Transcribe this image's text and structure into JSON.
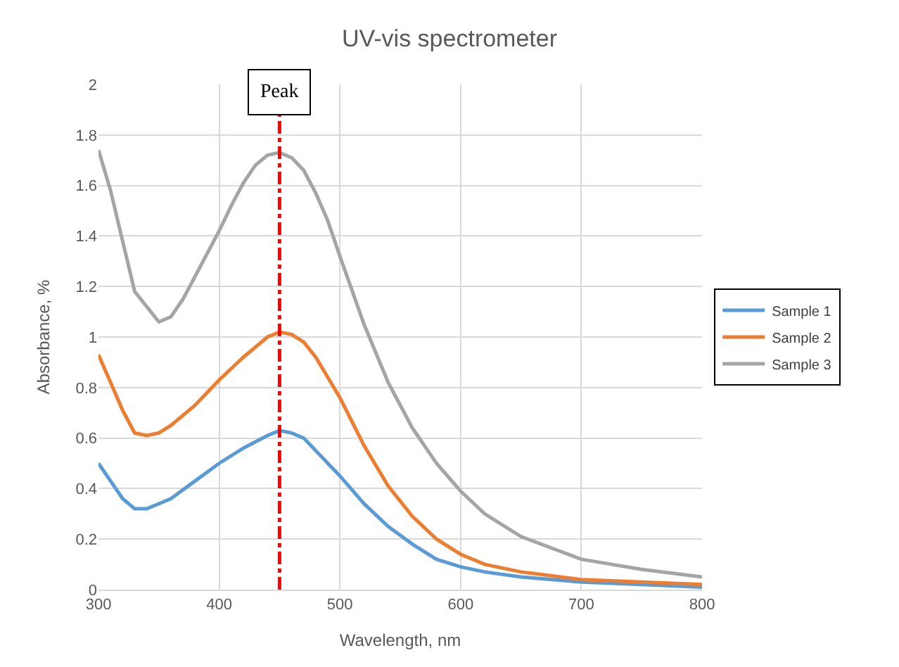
{
  "chart_data": {
    "type": "line",
    "title": "UV-vis spectrometer",
    "xlabel": "Wavelength, nm",
    "ylabel": "Absorbance, %",
    "xlim": [
      300,
      800
    ],
    "xticks": [
      300,
      400,
      500,
      600,
      700,
      800
    ],
    "ylim": [
      0,
      2
    ],
    "yticks": [
      0,
      0.2,
      0.4,
      0.6,
      0.8,
      1,
      1.2,
      1.4,
      1.6,
      1.8,
      2
    ],
    "grid": true,
    "legend": "right",
    "marker": "none",
    "line_style": "solid",
    "ref_lines": [
      {
        "axis": "x",
        "value": 450,
        "label": "Peak",
        "color": "#ff0000",
        "line_style": "dashed"
      }
    ],
    "series": [
      {
        "name": "Sample 1",
        "color": "#5b9bd5",
        "x": [
          300,
          310,
          320,
          330,
          340,
          350,
          360,
          380,
          400,
          420,
          440,
          450,
          460,
          470,
          480,
          500,
          520,
          540,
          560,
          580,
          600,
          620,
          650,
          700,
          750,
          800
        ],
        "values": [
          0.5,
          0.43,
          0.36,
          0.32,
          0.32,
          0.34,
          0.36,
          0.43,
          0.5,
          0.56,
          0.61,
          0.63,
          0.62,
          0.6,
          0.55,
          0.45,
          0.34,
          0.25,
          0.18,
          0.12,
          0.09,
          0.07,
          0.05,
          0.03,
          0.02,
          0.01
        ]
      },
      {
        "name": "Sample 2",
        "color": "#ed7d31",
        "x": [
          300,
          310,
          320,
          330,
          340,
          350,
          360,
          380,
          400,
          420,
          440,
          450,
          460,
          470,
          480,
          500,
          520,
          540,
          560,
          580,
          600,
          620,
          650,
          700,
          750,
          800
        ],
        "values": [
          0.93,
          0.82,
          0.71,
          0.62,
          0.61,
          0.62,
          0.65,
          0.73,
          0.83,
          0.92,
          1.0,
          1.02,
          1.01,
          0.98,
          0.92,
          0.76,
          0.57,
          0.41,
          0.29,
          0.2,
          0.14,
          0.1,
          0.07,
          0.04,
          0.03,
          0.02
        ]
      },
      {
        "name": "Sample 3",
        "color": "#a5a5a5",
        "x": [
          300,
          310,
          320,
          330,
          340,
          350,
          360,
          370,
          380,
          390,
          400,
          410,
          420,
          430,
          440,
          450,
          460,
          470,
          480,
          490,
          500,
          520,
          540,
          560,
          580,
          600,
          620,
          650,
          700,
          750,
          800
        ],
        "values": [
          1.74,
          1.58,
          1.38,
          1.18,
          1.12,
          1.06,
          1.08,
          1.15,
          1.24,
          1.33,
          1.42,
          1.52,
          1.61,
          1.68,
          1.72,
          1.73,
          1.71,
          1.66,
          1.57,
          1.46,
          1.32,
          1.05,
          0.82,
          0.64,
          0.5,
          0.39,
          0.3,
          0.21,
          0.12,
          0.08,
          0.05
        ]
      }
    ]
  }
}
